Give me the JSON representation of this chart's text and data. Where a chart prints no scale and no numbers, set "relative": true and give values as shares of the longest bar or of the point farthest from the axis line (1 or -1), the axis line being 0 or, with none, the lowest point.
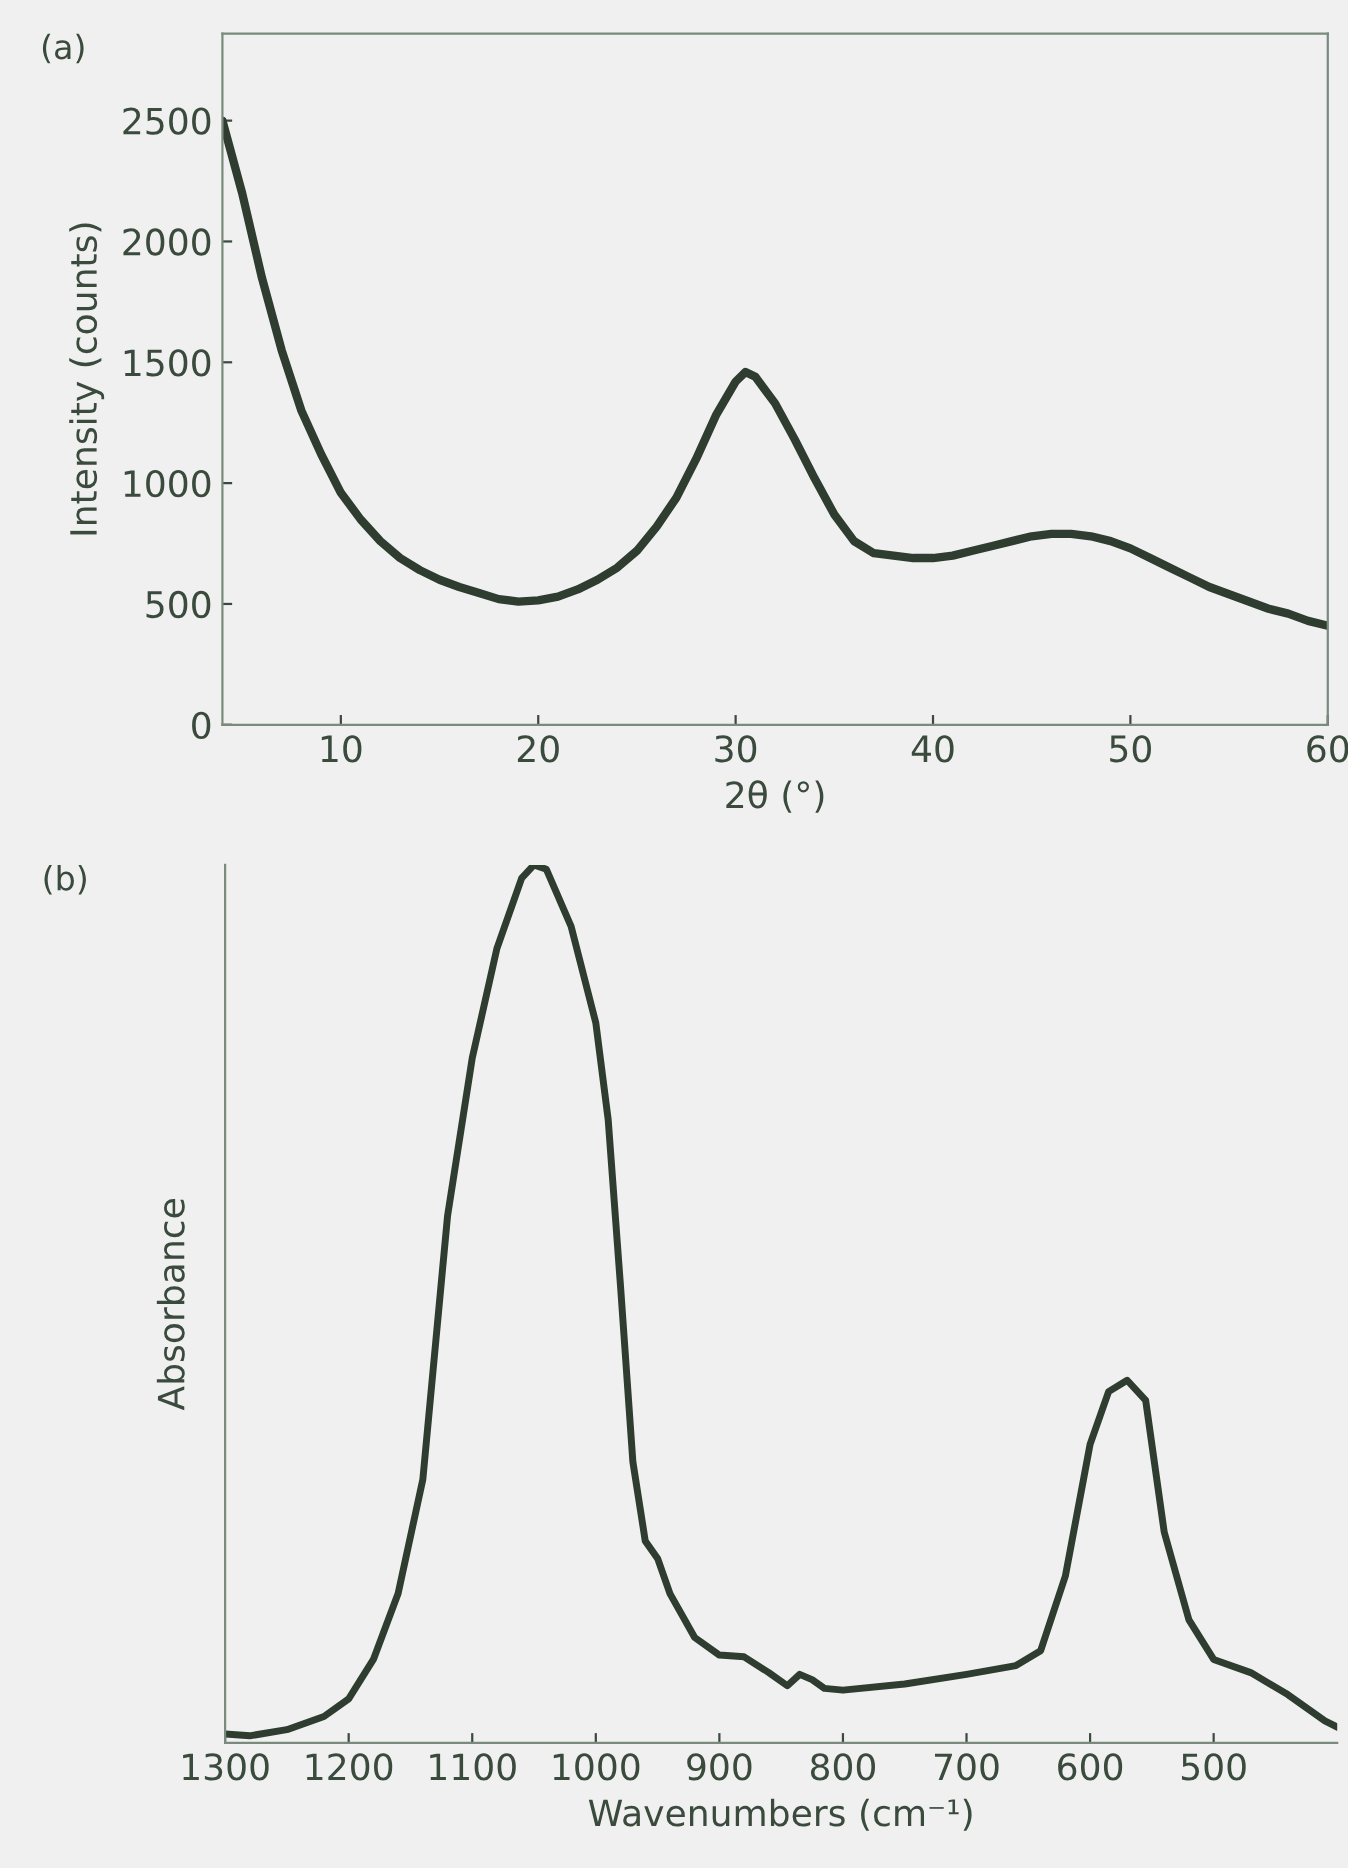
{
  "chart_data": [
    {
      "type": "line",
      "annotations": [
        "(a)"
      ],
      "xlabel": "2θ (°)",
      "ylabel": "Intensity (counts)",
      "x": [
        4,
        5,
        6,
        7,
        8,
        9,
        10,
        11,
        12,
        13,
        14,
        15,
        16,
        17,
        18,
        19,
        20,
        21,
        22,
        23,
        24,
        25,
        26,
        27,
        28,
        29,
        30,
        30.5,
        31,
        32,
        33,
        34,
        35,
        36,
        37,
        38,
        39,
        40,
        41,
        42,
        43,
        44,
        45,
        46,
        47,
        48,
        49,
        50,
        51,
        52,
        53,
        54,
        55,
        56,
        57,
        58,
        59,
        60
      ],
      "series": [
        {
          "color": "#2f3d30",
          "values": [
            2500,
            2200,
            1850,
            1550,
            1300,
            1120,
            960,
            850,
            760,
            690,
            640,
            600,
            570,
            545,
            520,
            510,
            515,
            530,
            560,
            600,
            650,
            720,
            820,
            940,
            1100,
            1280,
            1420,
            1460,
            1440,
            1330,
            1180,
            1020,
            870,
            760,
            710,
            700,
            690,
            690,
            700,
            720,
            740,
            760,
            780,
            790,
            790,
            780,
            760,
            730,
            690,
            650,
            610,
            570,
            540,
            510,
            480,
            460,
            430,
            410
          ]
        }
      ],
      "xlim": [
        4,
        60
      ],
      "xticks": [
        10,
        20,
        30,
        40,
        50,
        60
      ],
      "ylim": [
        0,
        2860
      ],
      "yticks": [
        0,
        500,
        1000,
        1500,
        2000,
        2500
      ],
      "grid": false
    },
    {
      "type": "line",
      "annotations": [
        "(b)"
      ],
      "xlabel": "Wavenumbers (cm⁻¹)",
      "ylabel": "Absorbance",
      "relative": true,
      "tick_labels": "x",
      "x": [
        1300,
        1280,
        1250,
        1220,
        1200,
        1180,
        1160,
        1140,
        1120,
        1100,
        1080,
        1060,
        1050,
        1040,
        1020,
        1000,
        990,
        980,
        970,
        960,
        950,
        940,
        920,
        900,
        880,
        860,
        845,
        835,
        825,
        815,
        800,
        750,
        700,
        660,
        640,
        620,
        600,
        585,
        570,
        555,
        540,
        520,
        500,
        470,
        440,
        410,
        400
      ],
      "series": [
        {
          "color": "#2f3d30",
          "values": [
            0.01,
            0.008,
            0.015,
            0.03,
            0.05,
            0.095,
            0.17,
            0.3,
            0.6,
            0.78,
            0.905,
            0.985,
            1.0,
            0.995,
            0.93,
            0.82,
            0.71,
            0.52,
            0.32,
            0.23,
            0.21,
            0.17,
            0.12,
            0.1,
            0.098,
            0.08,
            0.065,
            0.078,
            0.072,
            0.062,
            0.06,
            0.067,
            0.078,
            0.088,
            0.105,
            0.19,
            0.34,
            0.4,
            0.413,
            0.39,
            0.24,
            0.14,
            0.095,
            0.08,
            0.055,
            0.025,
            0.018
          ]
        }
      ],
      "xlim": [
        1300,
        400
      ],
      "xticks": [
        1300,
        1200,
        1100,
        1000,
        900,
        800,
        700,
        600,
        500
      ],
      "grid": false
    }
  ]
}
